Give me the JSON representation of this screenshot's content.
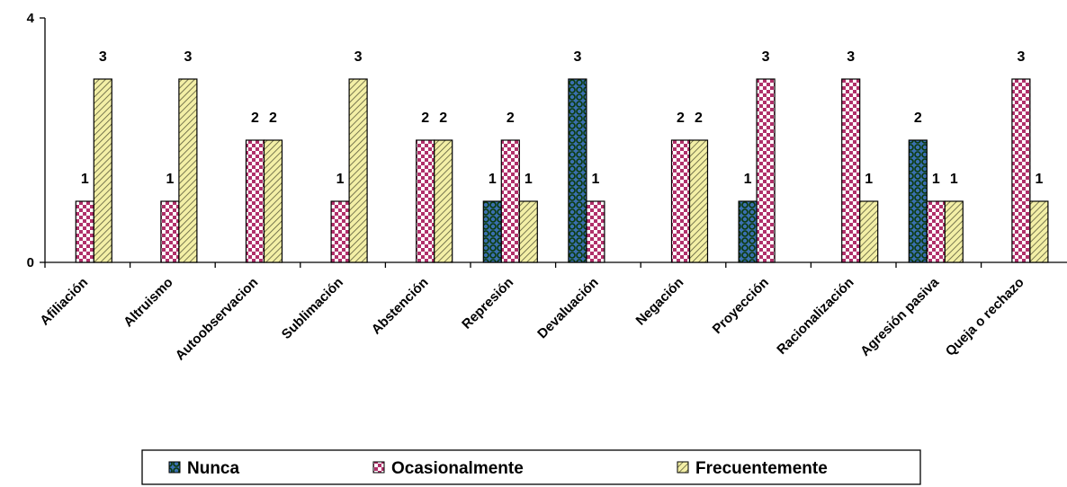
{
  "chart_data": {
    "type": "bar",
    "title": "",
    "xlabel": "",
    "ylabel": "",
    "ylim": [
      0,
      4
    ],
    "yticks": [
      "0",
      "4"
    ],
    "categories": [
      "Afiliación",
      "Altruismo",
      "Autoobservacion",
      "Sublimación",
      "Abstención",
      "Represión",
      "Devaluación",
      "Negación",
      "Proyección",
      "Racionalización",
      "Agresión pasiva",
      "Queja o rechazo"
    ],
    "series": [
      {
        "name": "Nunca",
        "color": "#3a6fb0",
        "pattern": "blue-dots",
        "values": [
          null,
          null,
          null,
          null,
          null,
          1,
          3,
          null,
          1,
          null,
          2,
          null
        ]
      },
      {
        "name": "Ocasionalmente",
        "color": "#b0306a",
        "pattern": "pink-checker",
        "values": [
          1,
          1,
          2,
          1,
          2,
          2,
          1,
          2,
          3,
          3,
          1,
          3
        ]
      },
      {
        "name": "Frecuentemente",
        "color": "#efeba0",
        "pattern": "yellow-hatch",
        "values": [
          3,
          3,
          2,
          3,
          2,
          1,
          null,
          2,
          null,
          1,
          1,
          1
        ]
      }
    ],
    "grid": false,
    "legend_position": "bottom"
  }
}
